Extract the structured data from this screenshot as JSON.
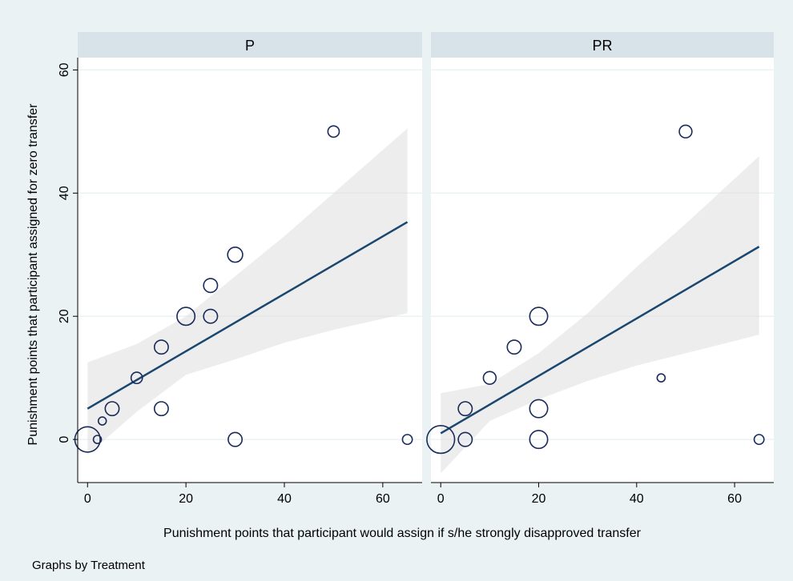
{
  "chart_data": {
    "type": "scatter",
    "xlabel": "Punishment points that participant would assign if s/he strongly disapproved transfer",
    "ylabel": "Punishment points that participant assigned for zero transfer",
    "note": "Graphs by Treatment",
    "xlim": [
      -2,
      68
    ],
    "ylim": [
      -7,
      62
    ],
    "x_ticks": [
      0,
      20,
      40,
      60
    ],
    "y_ticks": [
      0,
      20,
      40,
      60
    ],
    "grid": true,
    "panels": [
      {
        "title": "P",
        "points": [
          {
            "x": 0,
            "y": 0,
            "w": 10
          },
          {
            "x": 2,
            "y": 0,
            "w": 1
          },
          {
            "x": 3,
            "y": 3,
            "w": 1
          },
          {
            "x": 5,
            "y": 5,
            "w": 3
          },
          {
            "x": 10,
            "y": 10,
            "w": 2
          },
          {
            "x": 15,
            "y": 15,
            "w": 3
          },
          {
            "x": 15,
            "y": 5,
            "w": 3
          },
          {
            "x": 20,
            "y": 20,
            "w": 5
          },
          {
            "x": 25,
            "y": 25,
            "w": 3
          },
          {
            "x": 25,
            "y": 20,
            "w": 3
          },
          {
            "x": 30,
            "y": 30,
            "w": 3.5
          },
          {
            "x": 30,
            "y": 0,
            "w": 3
          },
          {
            "x": 50,
            "y": 50,
            "w": 2
          },
          {
            "x": 65,
            "y": 0,
            "w": 1.5
          }
        ],
        "fit": {
          "x": [
            0,
            65
          ],
          "y": [
            5,
            35.3
          ]
        },
        "ci_upper": [
          [
            0,
            12.5
          ],
          [
            10,
            15.5
          ],
          [
            20,
            20
          ],
          [
            30,
            26.5
          ],
          [
            40,
            33
          ],
          [
            50,
            40
          ],
          [
            65,
            50.5
          ]
        ],
        "ci_lower": [
          [
            0,
            -2.5
          ],
          [
            10,
            4.5
          ],
          [
            20,
            10.5
          ],
          [
            30,
            13
          ],
          [
            40,
            15.7
          ],
          [
            50,
            17.8
          ],
          [
            65,
            20.5
          ]
        ]
      },
      {
        "title": "PR",
        "points": [
          {
            "x": 0,
            "y": 0,
            "w": 12
          },
          {
            "x": 5,
            "y": 5,
            "w": 3
          },
          {
            "x": 5,
            "y": 0,
            "w": 3
          },
          {
            "x": 10,
            "y": 10,
            "w": 2.5
          },
          {
            "x": 15,
            "y": 15,
            "w": 3
          },
          {
            "x": 20,
            "y": 20,
            "w": 5
          },
          {
            "x": 20,
            "y": 5,
            "w": 5
          },
          {
            "x": 20,
            "y": 0,
            "w": 5
          },
          {
            "x": 45,
            "y": 10,
            "w": 1
          },
          {
            "x": 50,
            "y": 50,
            "w": 2.5
          },
          {
            "x": 65,
            "y": 0,
            "w": 1.5
          }
        ],
        "fit": {
          "x": [
            0,
            65
          ],
          "y": [
            1,
            31.3
          ]
        },
        "ci_upper": [
          [
            0,
            7.5
          ],
          [
            10,
            9
          ],
          [
            20,
            14
          ],
          [
            30,
            20.5
          ],
          [
            40,
            28
          ],
          [
            50,
            35
          ],
          [
            65,
            46
          ]
        ],
        "ci_lower": [
          [
            0,
            -5.5
          ],
          [
            10,
            3
          ],
          [
            20,
            6.5
          ],
          [
            30,
            9.5
          ],
          [
            40,
            12
          ],
          [
            50,
            14
          ],
          [
            65,
            17
          ]
        ]
      }
    ]
  }
}
